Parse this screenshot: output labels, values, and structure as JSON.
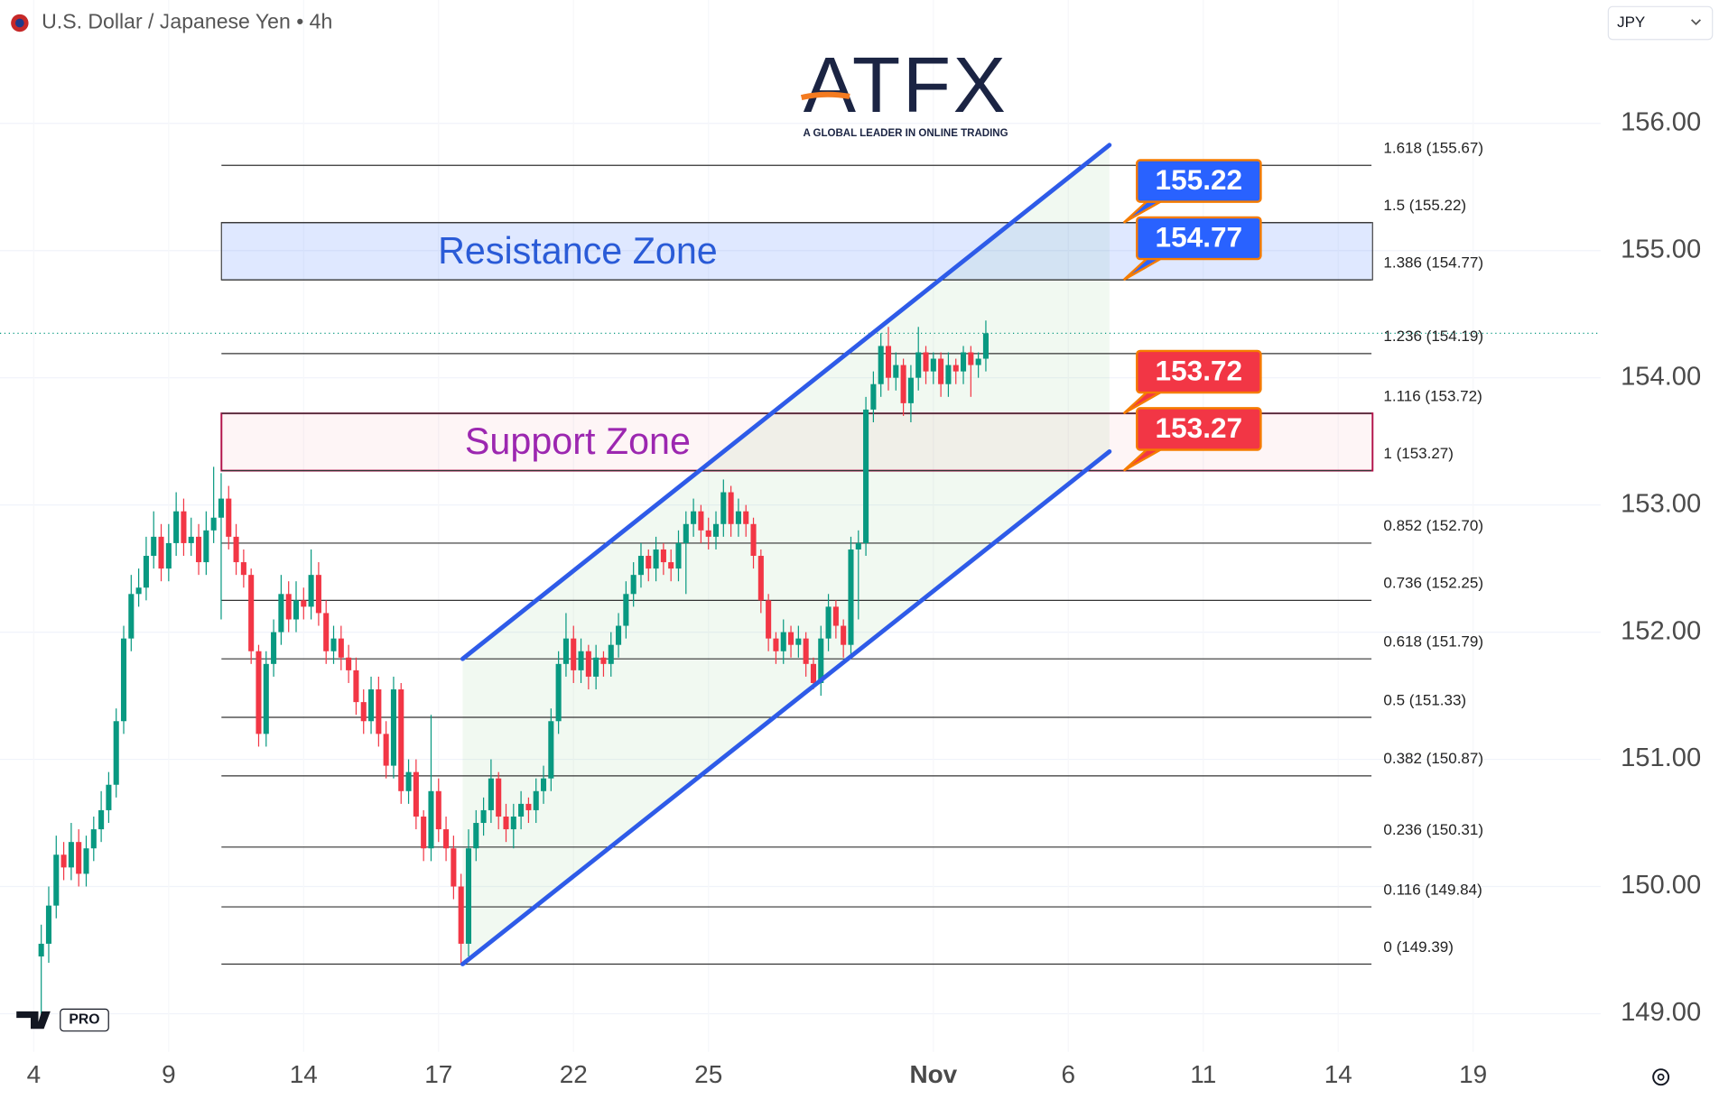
{
  "header": {
    "symbol": "U.S. Dollar / Japanese Yen • 4h",
    "currency": "JPY"
  },
  "logo": {
    "name": "ATFX",
    "tagline": "A GLOBAL LEADER IN ONLINE TRADING",
    "badge": "PRO"
  },
  "chart_data": {
    "type": "candlestick",
    "xlim": [
      -5.5,
      208
    ],
    "ylim": [
      148.7,
      156.97
    ],
    "xticks": [
      {
        "value": -1,
        "label": "4"
      },
      {
        "value": 17,
        "label": "9"
      },
      {
        "value": 35,
        "label": "14"
      },
      {
        "value": 53,
        "label": "17"
      },
      {
        "value": 71,
        "label": "22"
      },
      {
        "value": 89,
        "label": "25"
      },
      {
        "value": 119,
        "label": "Nov"
      },
      {
        "value": 137,
        "label": "6"
      },
      {
        "value": 155,
        "label": "11"
      },
      {
        "value": 173,
        "label": "14"
      },
      {
        "value": 191,
        "label": "19"
      }
    ],
    "yticks": [
      {
        "value": 149,
        "label": "149.00"
      },
      {
        "value": 150,
        "label": "150.00"
      },
      {
        "value": 151,
        "label": "151.00"
      },
      {
        "value": 152,
        "label": "152.00"
      },
      {
        "value": 153,
        "label": "153.00"
      },
      {
        "value": 154,
        "label": "154.00"
      },
      {
        "value": 155,
        "label": "155.00"
      },
      {
        "value": 156,
        "label": "156.00"
      }
    ],
    "grid": true,
    "colors": {
      "up": "#089981",
      "down": "#f23645"
    },
    "open": [
      149.45,
      149.55,
      149.85,
      150.25,
      150.15,
      150.35,
      150.1,
      150.3,
      150.45,
      150.6,
      150.8,
      151.3,
      151.95,
      152.3,
      152.35,
      152.6,
      152.75,
      152.5,
      152.7,
      152.95,
      152.7,
      152.75,
      152.55,
      152.8,
      152.9,
      153.05,
      152.75,
      152.55,
      152.45,
      151.85,
      151.2,
      151.75,
      152.0,
      152.3,
      152.1,
      152.25,
      152.2,
      152.45,
      152.15,
      151.85,
      151.95,
      151.8,
      151.7,
      151.45,
      151.3,
      151.55,
      151.2,
      150.95,
      151.55,
      150.75,
      150.9,
      150.55,
      150.3,
      150.75,
      150.45,
      150.3,
      150.0,
      149.55,
      150.3,
      150.5,
      150.6,
      150.85,
      150.55,
      150.45,
      150.55,
      150.65,
      150.6,
      150.75,
      150.85,
      151.3,
      151.75,
      151.95,
      151.7,
      151.85,
      151.65,
      151.8,
      151.75,
      151.9,
      152.05,
      152.3,
      152.45,
      152.6,
      152.5,
      152.65,
      152.55,
      152.5,
      152.7,
      152.85,
      152.95,
      152.8,
      152.75,
      152.85,
      153.1,
      152.85,
      152.95,
      152.85,
      152.6,
      152.25,
      151.95,
      151.85,
      152.0,
      151.9,
      151.95,
      151.75,
      151.6,
      151.95,
      152.2,
      152.05,
      151.9,
      152.65,
      152.7,
      153.75,
      153.95,
      154.25,
      154.0,
      154.1,
      153.8,
      154.0,
      154.2,
      154.05,
      154.15,
      153.95,
      154.1,
      154.05,
      154.2,
      154.1,
      154.15
    ],
    "high": [
      149.7,
      150.0,
      150.4,
      150.35,
      150.5,
      150.45,
      150.4,
      150.55,
      150.75,
      150.9,
      151.4,
      152.05,
      152.45,
      152.5,
      152.75,
      152.95,
      152.85,
      152.85,
      153.1,
      153.05,
      152.9,
      152.85,
      152.95,
      153.3,
      153.25,
      153.15,
      152.85,
      152.65,
      152.5,
      151.9,
      151.85,
      152.1,
      152.45,
      152.4,
      152.4,
      152.35,
      152.65,
      152.55,
      152.25,
      152.05,
      152.05,
      151.9,
      151.8,
      151.55,
      151.65,
      151.65,
      151.3,
      151.65,
      151.6,
      151.0,
      151.0,
      150.6,
      151.35,
      150.85,
      150.55,
      150.4,
      150.1,
      150.45,
      150.6,
      150.7,
      151.0,
      150.9,
      150.65,
      150.65,
      150.75,
      150.7,
      150.85,
      150.95,
      151.4,
      151.85,
      152.15,
      152.05,
      151.95,
      151.9,
      151.9,
      151.85,
      152.0,
      152.15,
      152.4,
      152.55,
      152.7,
      152.65,
      152.75,
      152.7,
      152.65,
      152.8,
      152.95,
      153.05,
      153.0,
      152.9,
      152.95,
      153.2,
      153.15,
      153.05,
      153.0,
      152.9,
      152.65,
      152.3,
      152.0,
      152.1,
      152.05,
      152.05,
      152.0,
      151.8,
      152.05,
      152.3,
      152.25,
      152.1,
      152.75,
      152.8,
      153.85,
      154.05,
      154.35,
      154.4,
      154.2,
      154.15,
      154.1,
      154.4,
      154.25,
      154.2,
      154.2,
      154.2,
      154.15,
      154.25,
      154.25,
      154.2,
      154.45
    ],
    "low": [
      149.0,
      149.4,
      149.75,
      150.05,
      150.05,
      150.0,
      150.0,
      150.2,
      150.35,
      150.5,
      150.7,
      151.2,
      151.85,
      152.2,
      152.25,
      152.5,
      152.4,
      152.4,
      152.6,
      152.6,
      152.6,
      152.45,
      152.45,
      152.7,
      152.1,
      152.65,
      152.45,
      152.35,
      151.75,
      151.1,
      151.1,
      151.65,
      151.9,
      152.0,
      152.0,
      152.1,
      152.1,
      152.05,
      151.75,
      151.75,
      151.7,
      151.6,
      151.35,
      151.2,
      151.2,
      151.1,
      150.85,
      150.85,
      150.65,
      150.65,
      150.45,
      150.2,
      150.2,
      150.35,
      150.2,
      149.9,
      149.39,
      149.45,
      150.2,
      150.4,
      150.5,
      150.45,
      150.35,
      150.3,
      150.45,
      150.5,
      150.5,
      150.65,
      150.75,
      151.2,
      151.65,
      151.6,
      151.6,
      151.55,
      151.55,
      151.65,
      151.65,
      151.8,
      151.95,
      152.2,
      152.35,
      152.4,
      152.4,
      152.45,
      152.4,
      152.4,
      152.3,
      152.75,
      152.7,
      152.65,
      152.65,
      152.75,
      152.75,
      152.75,
      152.75,
      152.5,
      152.15,
      151.85,
      151.75,
      151.75,
      151.8,
      151.8,
      151.65,
      151.55,
      151.5,
      151.85,
      151.95,
      151.8,
      151.8,
      152.1,
      152.6,
      153.65,
      153.85,
      153.9,
      153.9,
      153.7,
      153.65,
      153.9,
      153.95,
      153.95,
      153.85,
      153.85,
      153.95,
      153.95,
      153.85,
      154.0,
      154.05
    ],
    "close": [
      149.55,
      149.85,
      150.25,
      150.15,
      150.35,
      150.1,
      150.3,
      150.45,
      150.6,
      150.8,
      151.3,
      151.95,
      152.3,
      152.35,
      152.6,
      152.75,
      152.5,
      152.7,
      152.95,
      152.7,
      152.75,
      152.55,
      152.8,
      152.9,
      153.05,
      152.75,
      152.55,
      152.45,
      151.85,
      151.2,
      151.75,
      152.0,
      152.3,
      152.1,
      152.25,
      152.2,
      152.45,
      152.15,
      151.85,
      151.95,
      151.8,
      151.7,
      151.45,
      151.3,
      151.55,
      151.2,
      150.95,
      151.55,
      150.75,
      150.9,
      150.55,
      150.3,
      150.75,
      150.45,
      150.3,
      150.0,
      149.55,
      150.3,
      150.5,
      150.6,
      150.85,
      150.55,
      150.45,
      150.55,
      150.65,
      150.6,
      150.75,
      150.85,
      151.3,
      151.75,
      151.95,
      151.7,
      151.85,
      151.65,
      151.8,
      151.75,
      151.9,
      152.05,
      152.3,
      152.45,
      152.6,
      152.5,
      152.65,
      152.55,
      152.5,
      152.7,
      152.85,
      152.95,
      152.8,
      152.75,
      152.85,
      153.1,
      152.85,
      152.95,
      152.85,
      152.6,
      152.25,
      151.95,
      151.85,
      152.0,
      151.9,
      151.95,
      151.75,
      151.6,
      151.95,
      152.2,
      152.05,
      151.9,
      152.65,
      152.7,
      153.75,
      153.95,
      154.25,
      154.0,
      154.1,
      153.8,
      154.0,
      154.2,
      154.05,
      154.15,
      153.95,
      154.1,
      154.05,
      154.2,
      154.1,
      154.15,
      154.35
    ],
    "fib_levels": [
      {
        "value": 155.67,
        "label": "1.618 (155.67)"
      },
      {
        "value": 155.22,
        "label": "1.5 (155.22)"
      },
      {
        "value": 154.77,
        "label": "1.386 (154.77)"
      },
      {
        "value": 154.19,
        "label": "1.236 (154.19)"
      },
      {
        "value": 153.72,
        "label": "1.116 (153.72)"
      },
      {
        "value": 153.27,
        "label": "1 (153.27)"
      },
      {
        "value": 152.7,
        "label": "0.852 (152.70)"
      },
      {
        "value": 152.25,
        "label": "0.736 (152.25)"
      },
      {
        "value": 151.79,
        "label": "0.618 (151.79)"
      },
      {
        "value": 151.33,
        "label": "0.5 (151.33)"
      },
      {
        "value": 150.87,
        "label": "0.382 (150.87)"
      },
      {
        "value": 150.31,
        "label": "0.236 (150.31)"
      },
      {
        "value": 149.84,
        "label": "0.116 (149.84)"
      },
      {
        "value": 149.39,
        "label": "0 (149.39)"
      }
    ],
    "zones": [
      {
        "name": "Resistance Zone",
        "top": 155.22,
        "bottom": 154.77,
        "color": "#2a5bd7"
      },
      {
        "name": "Support Zone",
        "top": 153.72,
        "bottom": 153.27,
        "color": "#9c27b0"
      }
    ],
    "price_labels": [
      {
        "value": 155.22,
        "color": "#2962ff"
      },
      {
        "value": 154.77,
        "color": "#2962ff"
      },
      {
        "value": 153.72,
        "color": "#f23645"
      },
      {
        "value": 153.27,
        "color": "#f23645"
      }
    ],
    "channel": {
      "upper": [
        151.79,
        155.83
      ],
      "lower": [
        149.39,
        153.42
      ],
      "color": "#2e5be8"
    }
  }
}
